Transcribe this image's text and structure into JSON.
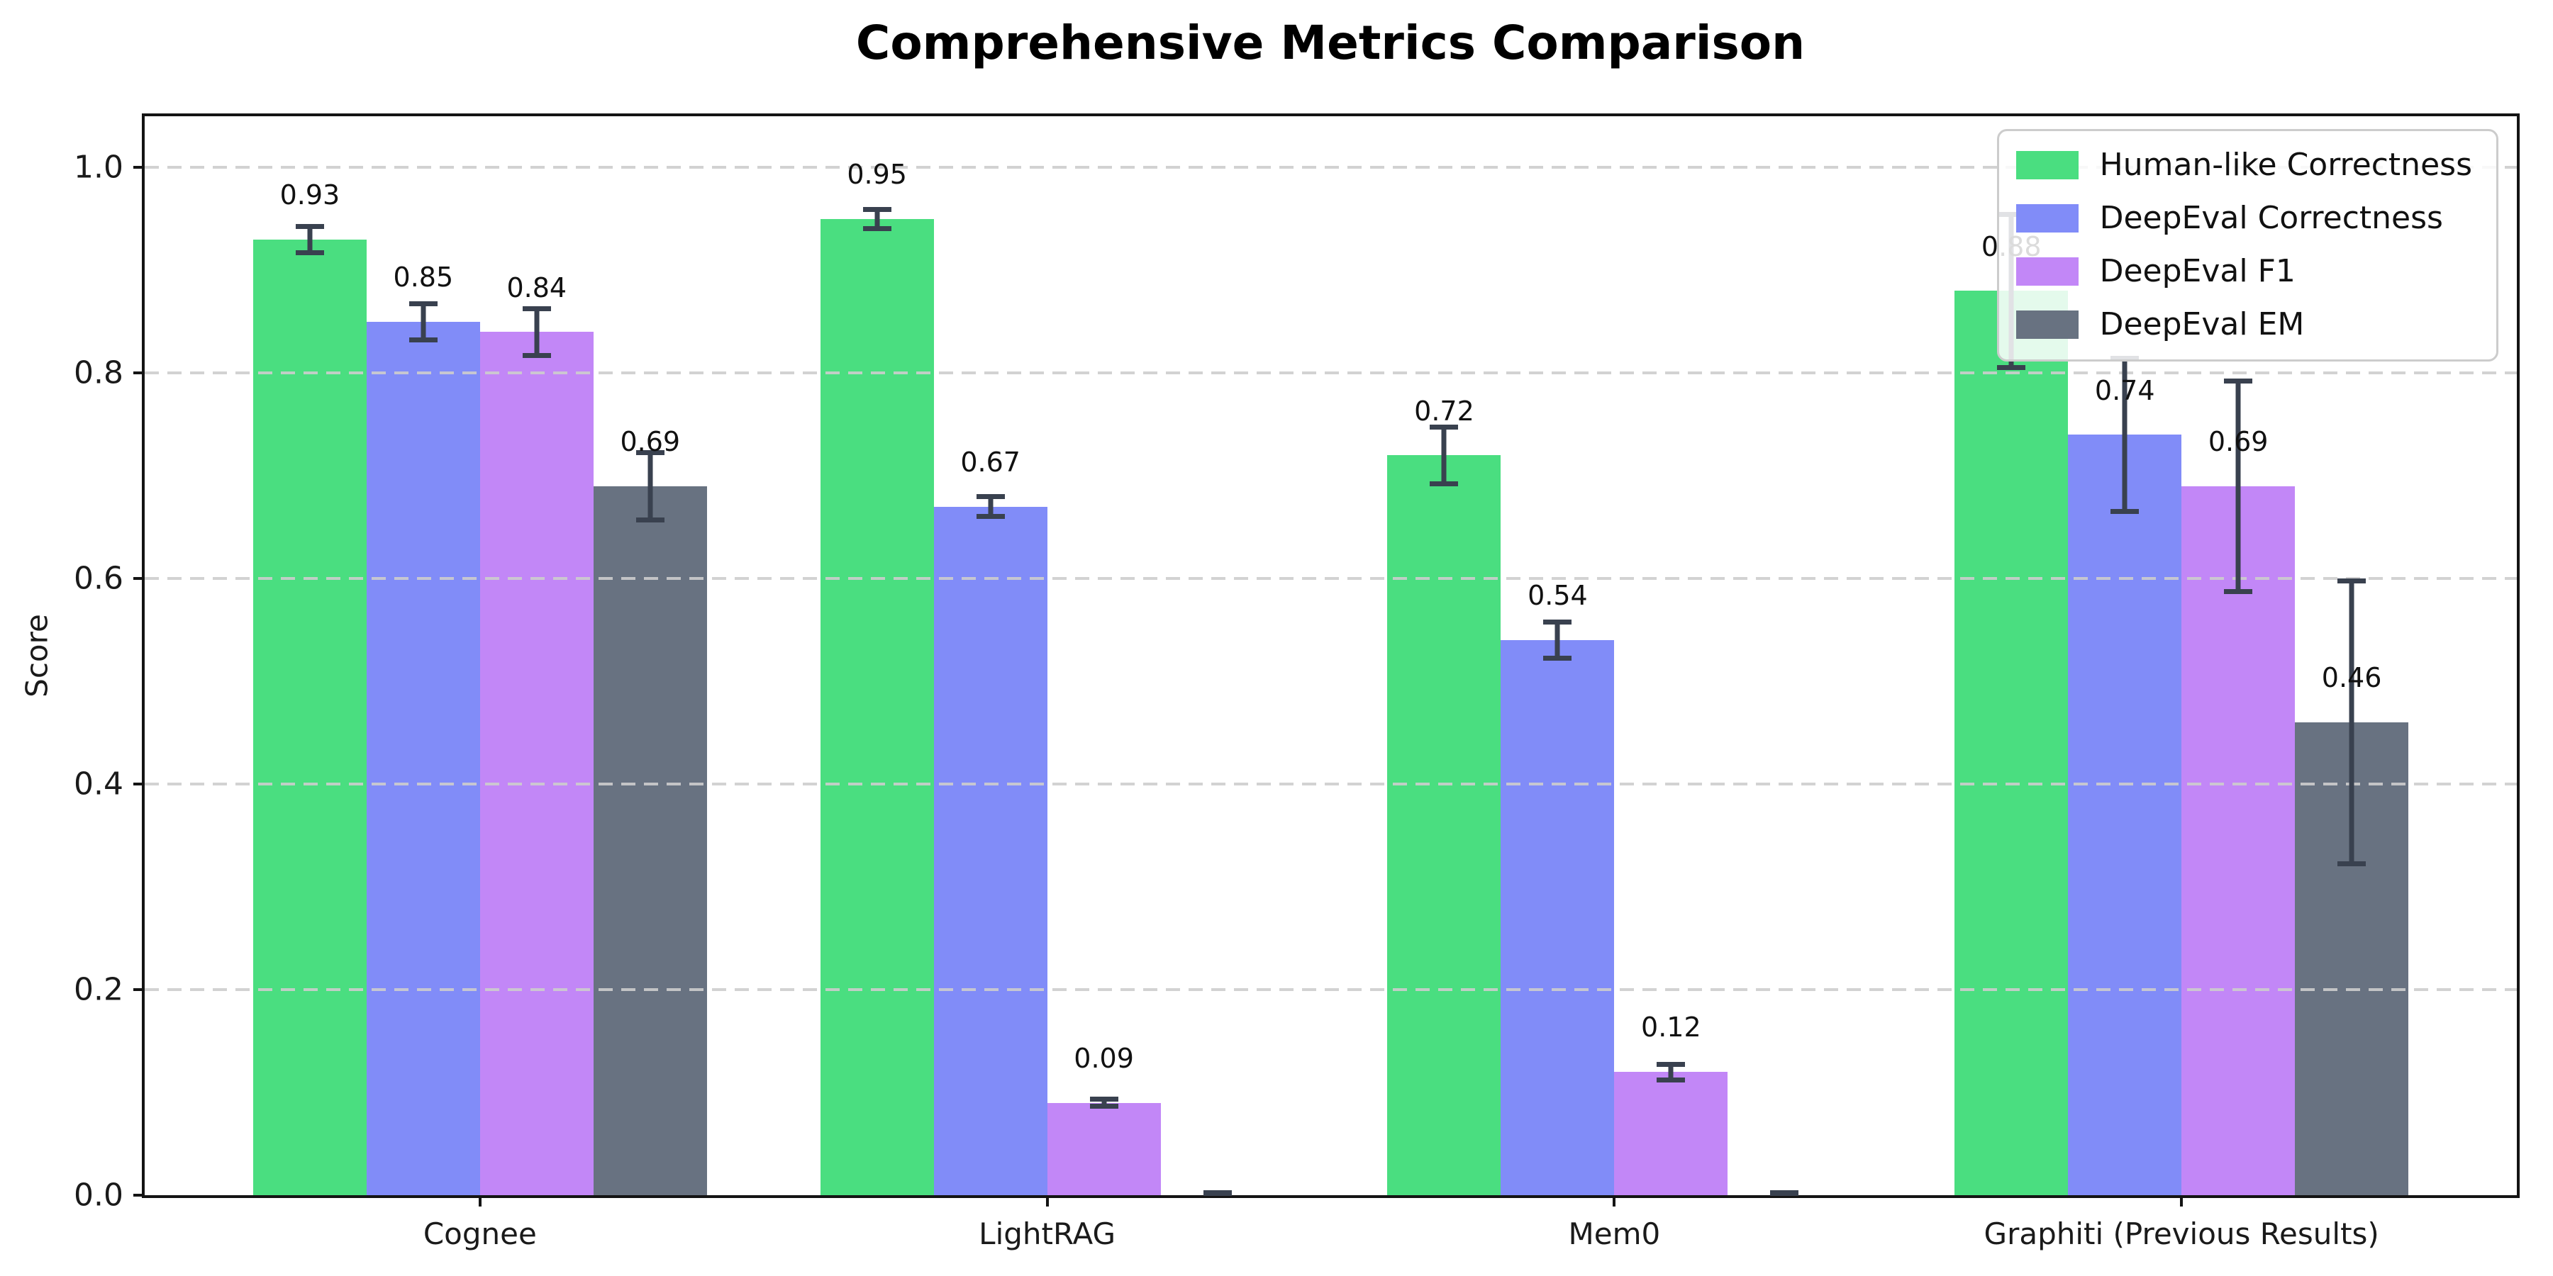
{
  "chart_data": {
    "type": "bar",
    "title": "Comprehensive Metrics Comparison",
    "xlabel": "",
    "ylabel": "Score",
    "categories": [
      "Cognee",
      "LightRAG",
      "Mem0",
      "Graphiti (Previous Results)"
    ],
    "series": [
      {
        "name": "Human-like Correctness",
        "color": "#4ade80",
        "values": [
          0.93,
          0.95,
          0.72,
          0.88
        ],
        "errors": [
          0.015,
          0.012,
          0.03,
          0.077
        ],
        "labels": [
          "0.93",
          "0.95",
          "0.72",
          "0.88"
        ]
      },
      {
        "name": "DeepEval Correctness",
        "color": "#818cf8",
        "values": [
          0.85,
          0.67,
          0.54,
          0.74
        ],
        "errors": [
          0.02,
          0.012,
          0.02,
          0.077
        ],
        "labels": [
          "0.85",
          "0.67",
          "0.54",
          "0.74"
        ]
      },
      {
        "name": "DeepEval F1",
        "color": "#c287f7",
        "values": [
          0.84,
          0.09,
          0.12,
          0.69
        ],
        "errors": [
          0.025,
          0.006,
          0.01,
          0.105
        ],
        "labels": [
          "0.84",
          "0.09",
          "0.12",
          "0.69"
        ]
      },
      {
        "name": "DeepEval EM",
        "color": "#687281",
        "values": [
          0.69,
          0.0,
          0.0,
          0.46
        ],
        "errors": [
          0.035,
          0.004,
          0.004,
          0.14
        ],
        "labels": [
          "0.69",
          "",
          "",
          "0.46"
        ]
      }
    ],
    "ylim": [
      0,
      1.05
    ],
    "yticks": [
      {
        "v": 0.0,
        "label": "0.0"
      },
      {
        "v": 0.2,
        "label": "0.2"
      },
      {
        "v": 0.4,
        "label": "0.4"
      },
      {
        "v": 0.6,
        "label": "0.6"
      },
      {
        "v": 0.8,
        "label": "0.8"
      },
      {
        "v": 1.0,
        "label": "1.0"
      }
    ],
    "grid": {
      "show": true,
      "style": "dashed",
      "color": "#d8d8d8",
      "axis": "y"
    },
    "legend": {
      "position": "upper right"
    },
    "bar_width_frac": 0.2,
    "group_pad_frac": 0.0218,
    "label_offset": 0.024,
    "error_bar_color": "#39414f",
    "axis_color": "#141414",
    "background_color": "#ffffff"
  }
}
